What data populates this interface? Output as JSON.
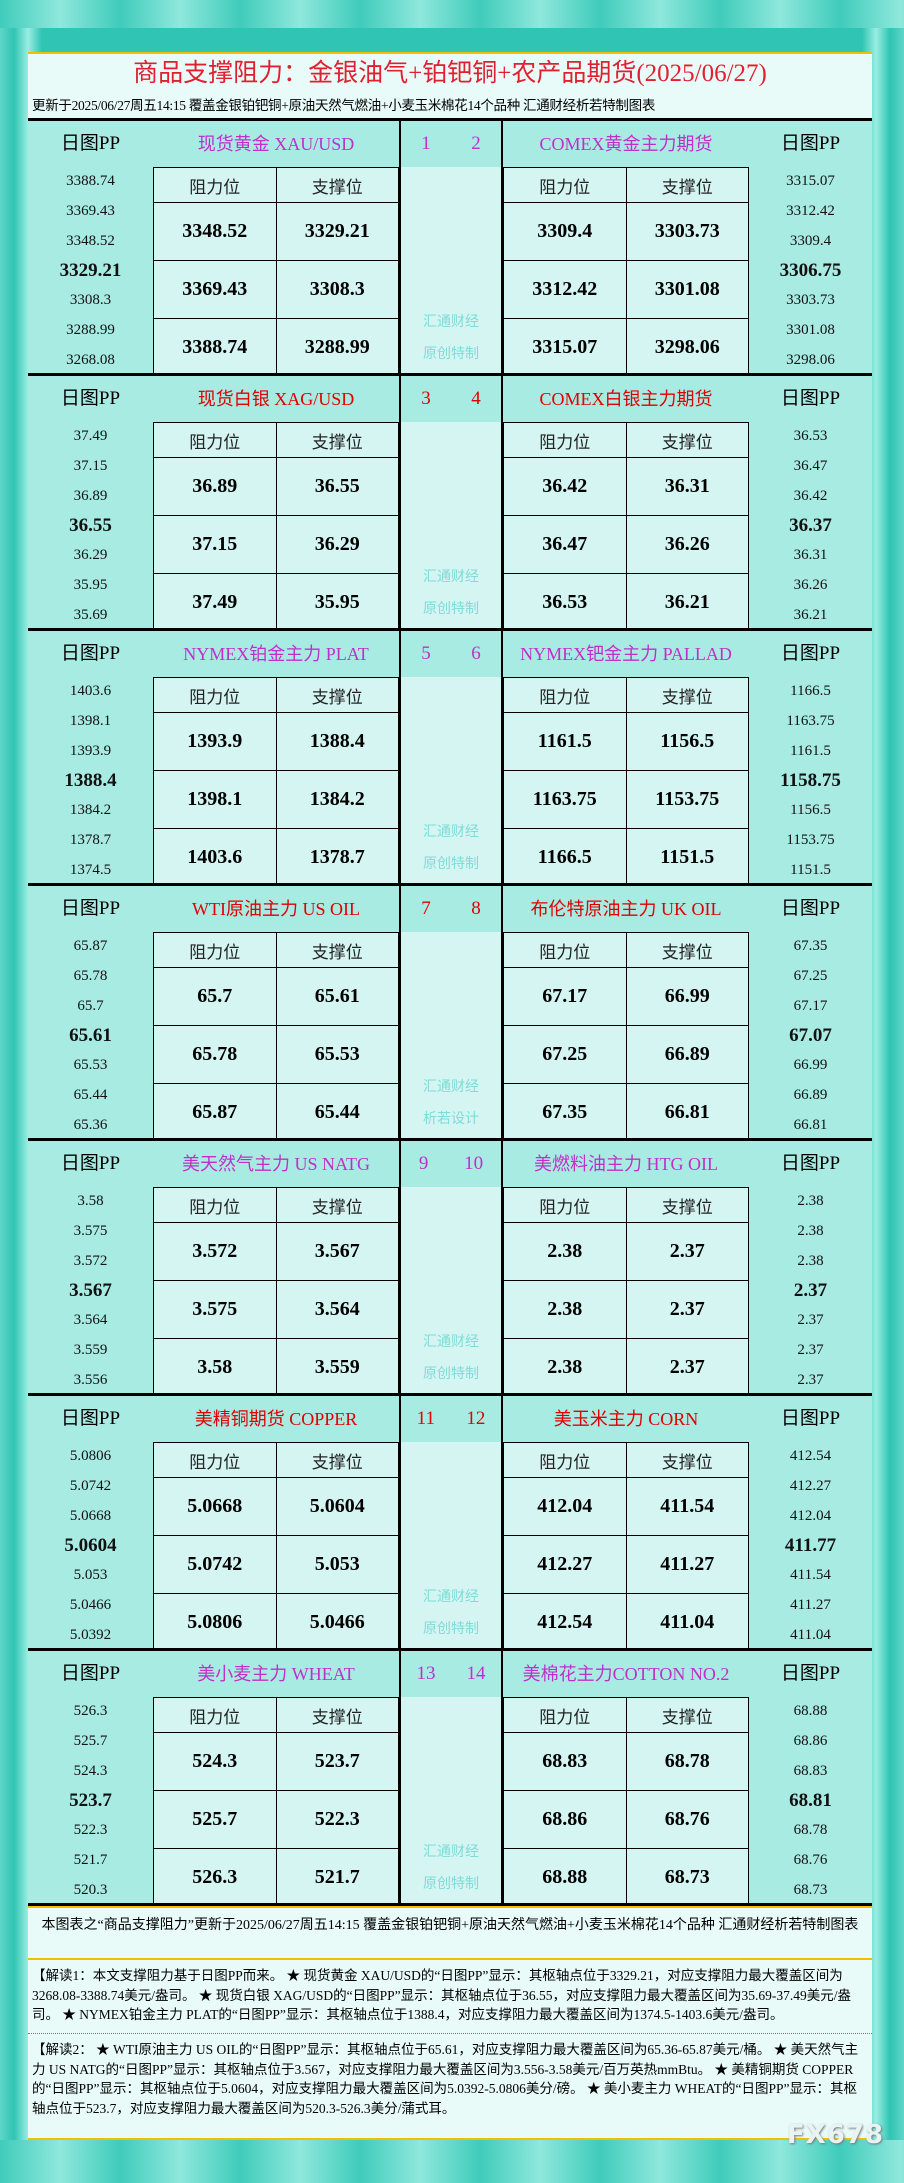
{
  "header": {
    "title": "商品支撑阻力：金银油气+铂钯铜+农产品期货(2025/06/27)",
    "subtitle": "更新于2025/06/27周五14:15 覆盖金银铂钯铜+原油天然气燃油+小麦玉米棉花14个品种 汇通财经析若特制图表"
  },
  "labels": {
    "pp": "日图PP",
    "resistance": "阻力位",
    "support": "支撑位"
  },
  "colors": {
    "purple": "#c030c8",
    "red": "#e00000",
    "frame": "#2fc4b4",
    "cell": "#d4f5f2",
    "header_cell": "#a8ebe3"
  },
  "blocks": [
    {
      "color": "#c030c8",
      "wm": [
        "汇通财经",
        "原创特制"
      ],
      "left": {
        "name": "现货黄金 XAU/USD",
        "num": "1",
        "pp": [
          "3388.74",
          "3369.43",
          "3348.52",
          "3329.21",
          "3308.3",
          "3288.99",
          "3268.08"
        ],
        "rows": [
          [
            "3348.52",
            "3329.21"
          ],
          [
            "3369.43",
            "3308.3"
          ],
          [
            "3388.74",
            "3288.99"
          ]
        ]
      },
      "right": {
        "name": "COMEX黄金主力期货",
        "num": "2",
        "pp": [
          "3315.07",
          "3312.42",
          "3309.4",
          "3306.75",
          "3303.73",
          "3301.08",
          "3298.06"
        ],
        "rows": [
          [
            "3309.4",
            "3303.73"
          ],
          [
            "3312.42",
            "3301.08"
          ],
          [
            "3315.07",
            "3298.06"
          ]
        ]
      }
    },
    {
      "color": "#e00000",
      "wm": [
        "汇通财经",
        "原创特制"
      ],
      "left": {
        "name": "现货白银 XAG/USD",
        "num": "3",
        "pp": [
          "37.49",
          "37.15",
          "36.89",
          "36.55",
          "36.29",
          "35.95",
          "35.69"
        ],
        "rows": [
          [
            "36.89",
            "36.55"
          ],
          [
            "37.15",
            "36.29"
          ],
          [
            "37.49",
            "35.95"
          ]
        ]
      },
      "right": {
        "name": "COMEX白银主力期货",
        "num": "4",
        "pp": [
          "36.53",
          "36.47",
          "36.42",
          "36.37",
          "36.31",
          "36.26",
          "36.21"
        ],
        "rows": [
          [
            "36.42",
            "36.31"
          ],
          [
            "36.47",
            "36.26"
          ],
          [
            "36.53",
            "36.21"
          ]
        ]
      }
    },
    {
      "color": "#c030c8",
      "wm": [
        "汇通财经",
        "原创特制"
      ],
      "left": {
        "name": "NYMEX铂金主力 PLAT",
        "num": "5",
        "pp": [
          "1403.6",
          "1398.1",
          "1393.9",
          "1388.4",
          "1384.2",
          "1378.7",
          "1374.5"
        ],
        "rows": [
          [
            "1393.9",
            "1388.4"
          ],
          [
            "1398.1",
            "1384.2"
          ],
          [
            "1403.6",
            "1378.7"
          ]
        ]
      },
      "right": {
        "name": "NYMEX钯金主力 PALLAD",
        "num": "6",
        "pp": [
          "1166.5",
          "1163.75",
          "1161.5",
          "1158.75",
          "1156.5",
          "1153.75",
          "1151.5"
        ],
        "rows": [
          [
            "1161.5",
            "1156.5"
          ],
          [
            "1163.75",
            "1153.75"
          ],
          [
            "1166.5",
            "1151.5"
          ]
        ]
      }
    },
    {
      "color": "#e00000",
      "wm": [
        "汇通财经",
        "析若设计"
      ],
      "left": {
        "name": "WTI原油主力 US OIL",
        "num": "7",
        "pp": [
          "65.87",
          "65.78",
          "65.7",
          "65.61",
          "65.53",
          "65.44",
          "65.36"
        ],
        "rows": [
          [
            "65.7",
            "65.61"
          ],
          [
            "65.78",
            "65.53"
          ],
          [
            "65.87",
            "65.44"
          ]
        ]
      },
      "right": {
        "name": "布伦特原油主力 UK OIL",
        "num": "8",
        "pp": [
          "67.35",
          "67.25",
          "67.17",
          "67.07",
          "66.99",
          "66.89",
          "66.81"
        ],
        "rows": [
          [
            "67.17",
            "66.99"
          ],
          [
            "67.25",
            "66.89"
          ],
          [
            "67.35",
            "66.81"
          ]
        ]
      }
    },
    {
      "color": "#c030c8",
      "wm": [
        "汇通财经",
        "原创特制"
      ],
      "left": {
        "name": "美天然气主力 US NATG",
        "num": "9",
        "pp": [
          "3.58",
          "3.575",
          "3.572",
          "3.567",
          "3.564",
          "3.559",
          "3.556"
        ],
        "rows": [
          [
            "3.572",
            "3.567"
          ],
          [
            "3.575",
            "3.564"
          ],
          [
            "3.58",
            "3.559"
          ]
        ]
      },
      "right": {
        "name": "美燃料油主力 HTG OIL",
        "num": "10",
        "pp": [
          "2.38",
          "2.38",
          "2.38",
          "2.37",
          "2.37",
          "2.37",
          "2.37"
        ],
        "rows": [
          [
            "2.38",
            "2.37"
          ],
          [
            "2.38",
            "2.37"
          ],
          [
            "2.38",
            "2.37"
          ]
        ]
      }
    },
    {
      "color": "#e00000",
      "wm": [
        "汇通财经",
        "原创特制"
      ],
      "left": {
        "name": "美精铜期货 COPPER",
        "num": "11",
        "pp": [
          "5.0806",
          "5.0742",
          "5.0668",
          "5.0604",
          "5.053",
          "5.0466",
          "5.0392"
        ],
        "rows": [
          [
            "5.0668",
            "5.0604"
          ],
          [
            "5.0742",
            "5.053"
          ],
          [
            "5.0806",
            "5.0466"
          ]
        ]
      },
      "right": {
        "name": "美玉米主力 CORN",
        "num": "12",
        "pp": [
          "412.54",
          "412.27",
          "412.04",
          "411.77",
          "411.54",
          "411.27",
          "411.04"
        ],
        "rows": [
          [
            "412.04",
            "411.54"
          ],
          [
            "412.27",
            "411.27"
          ],
          [
            "412.54",
            "411.04"
          ]
        ]
      }
    },
    {
      "color": "#c030c8",
      "wm": [
        "汇通财经",
        "原创特制"
      ],
      "left": {
        "name": "美小麦主力 WHEAT",
        "num": "13",
        "pp": [
          "526.3",
          "525.7",
          "524.3",
          "523.7",
          "522.3",
          "521.7",
          "520.3"
        ],
        "rows": [
          [
            "524.3",
            "523.7"
          ],
          [
            "525.7",
            "522.3"
          ],
          [
            "526.3",
            "521.7"
          ]
        ]
      },
      "right": {
        "name": "美棉花主力COTTON NO.2",
        "num": "14",
        "pp": [
          "68.88",
          "68.86",
          "68.83",
          "68.81",
          "68.78",
          "68.76",
          "68.73"
        ],
        "rows": [
          [
            "68.83",
            "68.78"
          ],
          [
            "68.86",
            "68.76"
          ],
          [
            "68.88",
            "68.73"
          ]
        ]
      }
    }
  ],
  "footer": {
    "note": "本图表之“商品支撑阻力”更新于2025/06/27周五14:15 覆盖金银铂钯铜+原油天然气燃油+小麦玉米棉花14个品种 汇通财经析若特制图表",
    "exp1": "【解读1：本文支撑阻力基于日图PP而来。 ★ 现货黄金 XAU/USD的“日图PP”显示：其枢轴点位于3329.21，对应支撑阻力最大覆盖区间为3268.08-3388.74美元/盎司。 ★ 现货白银 XAG/USD的“日图PP”显示：其枢轴点位于36.55，对应支撑阻力最大覆盖区间为35.69-37.49美元/盎司。 ★ NYMEX铂金主力 PLAT的“日图PP”显示：其枢轴点位于1388.4，对应支撑阻力最大覆盖区间为1374.5-1403.6美元/盎司。",
    "exp2": "【解读2： ★ WTI原油主力 US OIL的“日图PP”显示：其枢轴点位于65.61，对应支撑阻力最大覆盖区间为65.36-65.87美元/桶。 ★ 美天然气主力 US NATG的“日图PP”显示：其枢轴点位于3.567，对应支撑阻力最大覆盖区间为3.556-3.58美元/百万英热mmBtu。 ★ 美精铜期货 COPPER的“日图PP”显示：其枢轴点位于5.0604，对应支撑阻力最大覆盖区间为5.0392-5.0806美分/磅。 ★ 美小麦主力 WHEAT的“日图PP”显示：其枢轴点位于523.7，对应支撑阻力最大覆盖区间为520.3-526.3美分/蒲式耳。",
    "logo": "FX678"
  }
}
